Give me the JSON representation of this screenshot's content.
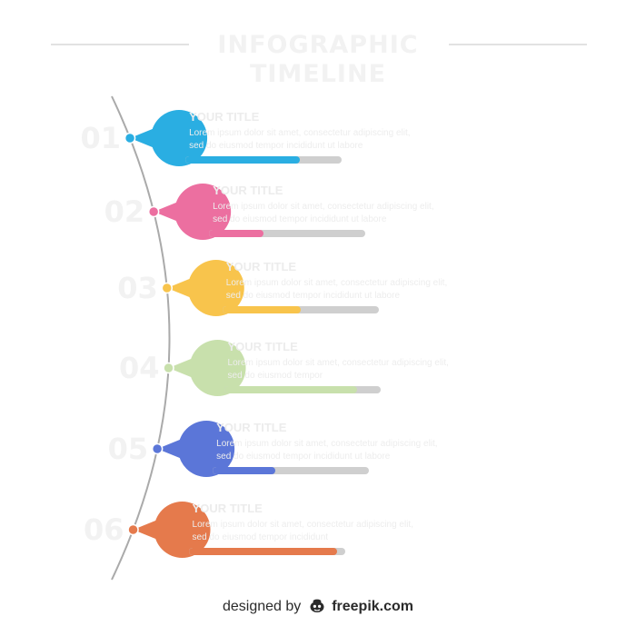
{
  "header": {
    "title": "INFOGRAPHIC TIMELINE"
  },
  "palette": {
    "line": "#aaaaaa",
    "track": "#cfcfcf",
    "steps": [
      "#2aaee2",
      "#ec6fa0",
      "#f8c44c",
      "#c8e0ac",
      "#5b76d8",
      "#e57a4c"
    ]
  },
  "steps": [
    {
      "number": "01",
      "heading": "YOUR TITLE",
      "body": [
        "Lorem ipsum dolor sit amet, consectetur adipiscing elit,",
        "sed do eiusmod tempor incididunt ut labore"
      ],
      "progress": 0.73
    },
    {
      "number": "02",
      "heading": "YOUR TITLE",
      "body": [
        "Lorem ipsum dolor sit amet, consectetur adipiscing elit,",
        "sed do eiusmod tempor incididunt ut labore"
      ],
      "progress": 0.35
    },
    {
      "number": "03",
      "heading": "YOUR TITLE",
      "body": [
        "Lorem ipsum dolor sit amet, consectetur adipiscing elit,",
        "sed do eiusmod tempor incididunt ut labore"
      ],
      "progress": 0.5
    },
    {
      "number": "04",
      "heading": "YOUR TITLE",
      "body": [
        "Lorem ipsum dolor sit amet, consectetur adipiscing elit,",
        "sed do eiusmod tempor"
      ],
      "progress": 0.85
    },
    {
      "number": "05",
      "heading": "YOUR TITLE",
      "body": [
        "Lorem ipsum dolor sit amet, consectetur adipiscing elit,",
        "sed do eiusmod tempor incididunt ut labore"
      ],
      "progress": 0.4
    },
    {
      "number": "06",
      "heading": "YOUR TITLE",
      "body": [
        "Lorem ipsum dolor sit amet, consectetur adipiscing elit,",
        "sed do eiusmod tempor incididunt"
      ],
      "progress": 0.95
    }
  ],
  "footer": {
    "designed_by": "designed by",
    "brand": "freepik.com",
    "brand_icon": "freepik-logo-icon"
  }
}
